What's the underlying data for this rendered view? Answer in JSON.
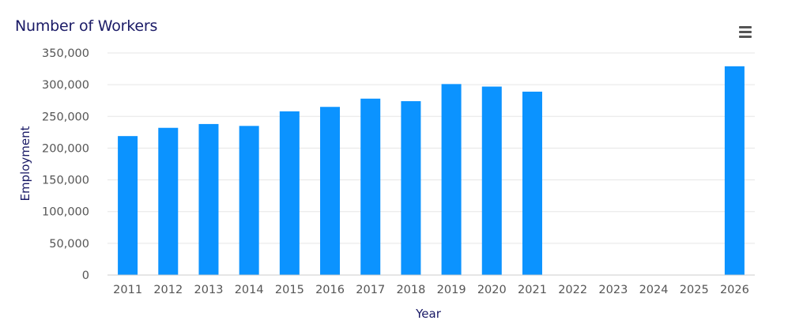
{
  "title": "Number of Workers",
  "menu_icon": "hamburger-menu-icon",
  "colors": {
    "bar": "#0b93ff",
    "grid": "#e6e6e6",
    "title": "#1a1a66",
    "ticks": "#555555"
  },
  "chart_data": {
    "type": "bar",
    "title": "Number of Workers",
    "xlabel": "Year",
    "ylabel": "Employment",
    "categories": [
      "2011",
      "2012",
      "2013",
      "2014",
      "2015",
      "2016",
      "2017",
      "2018",
      "2019",
      "2020",
      "2021",
      "2022",
      "2023",
      "2024",
      "2025",
      "2026"
    ],
    "values": [
      219000,
      232000,
      238000,
      235000,
      258000,
      265000,
      278000,
      274000,
      301000,
      297000,
      289000,
      null,
      null,
      null,
      null,
      329000
    ],
    "ylim": [
      0,
      350000
    ],
    "yticks": [
      0,
      50000,
      100000,
      150000,
      200000,
      250000,
      300000,
      350000
    ],
    "ytick_labels": [
      "0",
      "50,000",
      "100,000",
      "150,000",
      "200,000",
      "250,000",
      "300,000",
      "350,000"
    ],
    "grid": true,
    "legend": "none"
  }
}
